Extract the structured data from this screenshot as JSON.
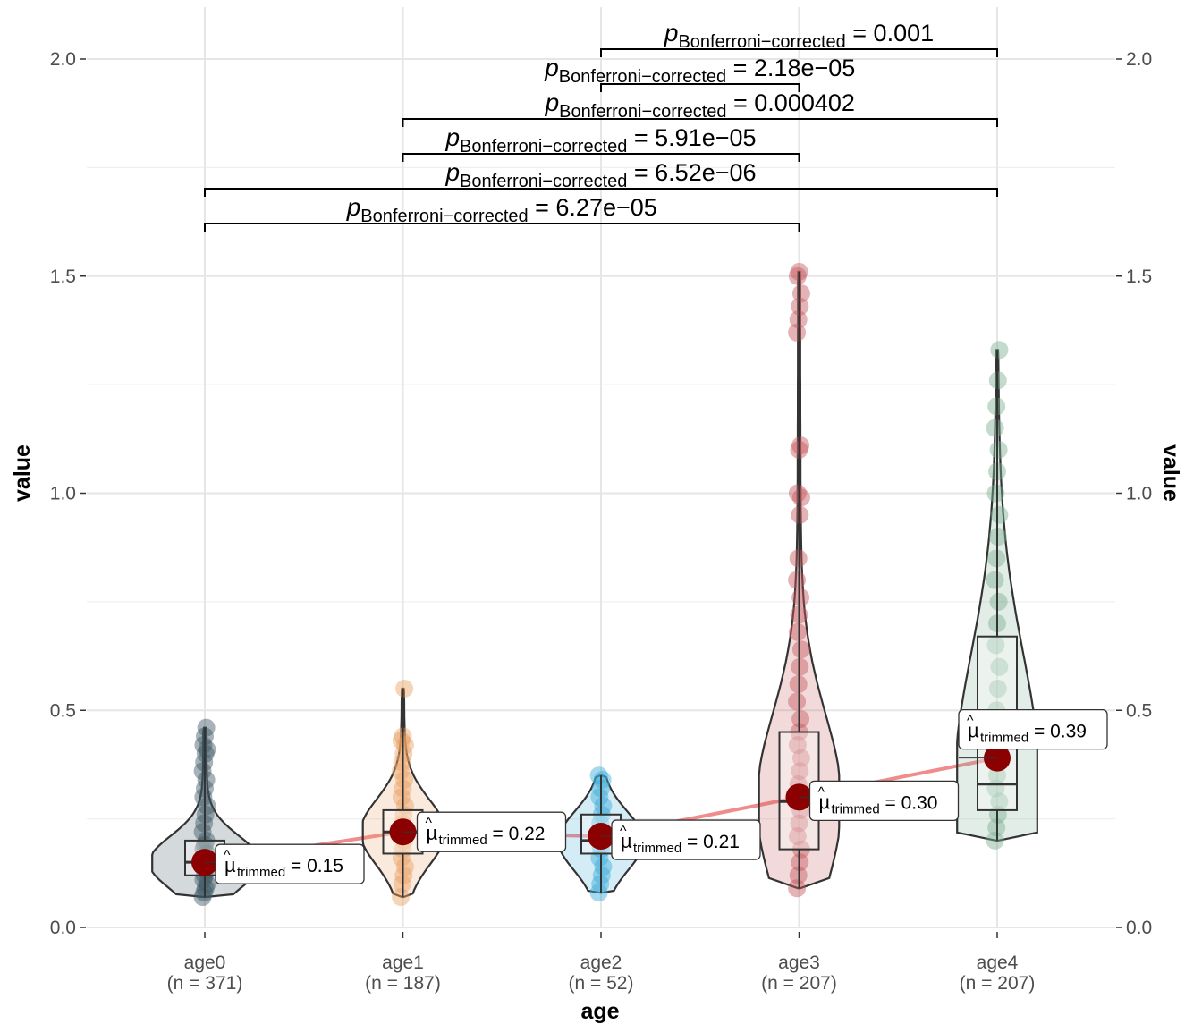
{
  "chart_data": {
    "type": "violin-box-scatter",
    "xlabel": "age",
    "ylabel": "value",
    "ylabel_secondary": "value",
    "ylim": [
      0,
      2.0
    ],
    "yticks": [
      {
        "value": 0.0,
        "label": "0.0"
      },
      {
        "value": 0.5,
        "label": "0.5"
      },
      {
        "value": 1.0,
        "label": "1.0"
      },
      {
        "value": 1.5,
        "label": "1.5"
      },
      {
        "value": 2.0,
        "label": "2.0"
      }
    ],
    "grid": true,
    "trend_line_color": "#f08080",
    "groups": [
      {
        "name": "age0",
        "n_label": "(n = 371)",
        "color": "#3c5661",
        "trimmed_mean": 0.15,
        "mean_label": "= 0.15",
        "box": {
          "q1": 0.12,
          "median": 0.15,
          "q3": 0.2
        },
        "min": 0.07,
        "max": 0.46,
        "points": [
          0.07,
          0.08,
          0.09,
          0.1,
          0.11,
          0.12,
          0.13,
          0.14,
          0.15,
          0.16,
          0.17,
          0.18,
          0.19,
          0.2,
          0.22,
          0.24,
          0.26,
          0.28,
          0.3,
          0.32,
          0.34,
          0.36,
          0.38,
          0.4,
          0.41,
          0.42,
          0.44,
          0.46
        ]
      },
      {
        "name": "age1",
        "n_label": "(n = 187)",
        "color": "#e8a062",
        "trimmed_mean": 0.22,
        "mean_label": "= 0.22",
        "box": {
          "q1": 0.17,
          "median": 0.22,
          "q3": 0.27
        },
        "min": 0.07,
        "max": 0.55,
        "points": [
          0.07,
          0.1,
          0.12,
          0.14,
          0.16,
          0.18,
          0.2,
          0.22,
          0.24,
          0.26,
          0.28,
          0.3,
          0.32,
          0.34,
          0.36,
          0.38,
          0.4,
          0.42,
          0.43,
          0.44,
          0.55
        ]
      },
      {
        "name": "age2",
        "n_label": "(n = 52)",
        "color": "#3aaad8",
        "trimmed_mean": 0.21,
        "mean_label": "= 0.21",
        "box": {
          "q1": 0.17,
          "median": 0.2,
          "q3": 0.26
        },
        "min": 0.08,
        "max": 0.35,
        "points": [
          0.08,
          0.1,
          0.12,
          0.14,
          0.16,
          0.18,
          0.2,
          0.22,
          0.24,
          0.26,
          0.28,
          0.3,
          0.32,
          0.34,
          0.35
        ]
      },
      {
        "name": "age3",
        "n_label": "(n = 207)",
        "color": "#c4575c",
        "trimmed_mean": 0.3,
        "mean_label": "= 0.30",
        "box": {
          "q1": 0.18,
          "median": 0.29,
          "q3": 0.45
        },
        "min": 0.09,
        "max": 1.51,
        "points": [
          0.09,
          0.12,
          0.15,
          0.18,
          0.21,
          0.24,
          0.27,
          0.3,
          0.33,
          0.36,
          0.39,
          0.42,
          0.45,
          0.48,
          0.52,
          0.56,
          0.6,
          0.64,
          0.68,
          0.72,
          0.76,
          0.8,
          0.85,
          0.95,
          0.99,
          1.0,
          1.1,
          1.11,
          1.37,
          1.4,
          1.43,
          1.46,
          1.5,
          1.51
        ]
      },
      {
        "name": "age4",
        "n_label": "(n = 207)",
        "color": "#7aac90",
        "trimmed_mean": 0.39,
        "mean_label": "= 0.39",
        "box": {
          "q1": 0.27,
          "median": 0.33,
          "q3": 0.67
        },
        "min": 0.2,
        "max": 1.33,
        "points": [
          0.2,
          0.23,
          0.26,
          0.29,
          0.32,
          0.35,
          0.4,
          0.45,
          0.5,
          0.55,
          0.6,
          0.65,
          0.7,
          0.75,
          0.8,
          0.85,
          0.9,
          0.95,
          1.0,
          1.05,
          1.1,
          1.15,
          1.2,
          1.26,
          1.33
        ]
      }
    ],
    "comparisons": [
      {
        "from": 3,
        "to": 5,
        "p_label": "0.001"
      },
      {
        "from": 3,
        "to": 4,
        "p_label": "2.18e−05"
      },
      {
        "from": 2,
        "to": 5,
        "p_label": "0.000402"
      },
      {
        "from": 2,
        "to": 4,
        "p_label": "5.91e−05"
      },
      {
        "from": 1,
        "to": 5,
        "p_label": "6.52e−06"
      },
      {
        "from": 1,
        "to": 4,
        "p_label": "6.27e−05"
      }
    ],
    "p_symbol": "p",
    "p_subscript": "Bonferroni−corrected",
    "mu_symbol": "µ",
    "mu_subscript": "trimmed",
    "mu_hat": "^"
  }
}
